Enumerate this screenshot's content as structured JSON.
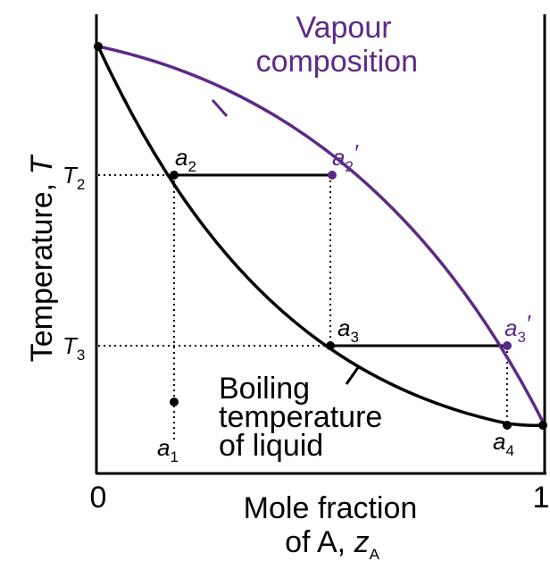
{
  "axis": {
    "y_label": {
      "text": "Temperature, ",
      "symbol": "T"
    },
    "x_label": {
      "line1": "Mole fraction",
      "line2": "of A, ",
      "symbol": "z",
      "subscript": "A"
    },
    "x_ticks": [
      "0",
      "1"
    ],
    "y_ticks": [
      {
        "symbol": "T",
        "subscript": "2"
      },
      {
        "symbol": "T",
        "subscript": "3"
      }
    ]
  },
  "curves": {
    "vapour": [
      "Vapour",
      "composition"
    ],
    "liquid": [
      "Boiling",
      "temperature",
      "of liquid"
    ]
  },
  "points": [
    {
      "symbol": "a",
      "subscript": "1"
    },
    {
      "symbol": "a",
      "subscript": "2"
    },
    {
      "symbol": "a",
      "subscript": "2",
      "prime": "′"
    },
    {
      "symbol": "a",
      "subscript": "3"
    },
    {
      "symbol": "a",
      "subscript": "3",
      "prime": "′"
    },
    {
      "symbol": "a",
      "subscript": "4"
    }
  ]
}
